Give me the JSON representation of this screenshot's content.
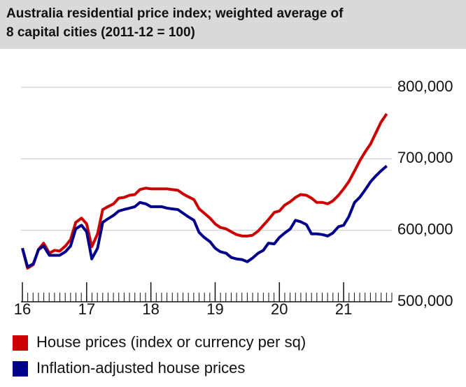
{
  "chart_data": {
    "type": "line",
    "title": "Australia residential price index; weighted average of\n8 capital cities (2011-12 = 100)",
    "x": [
      16,
      16.08,
      16.17,
      16.25,
      16.33,
      16.42,
      16.5,
      16.58,
      16.67,
      16.75,
      16.83,
      16.92,
      17,
      17.08,
      17.17,
      17.25,
      17.33,
      17.42,
      17.5,
      17.58,
      17.67,
      17.75,
      17.83,
      17.92,
      18,
      18.08,
      18.17,
      18.25,
      18.33,
      18.42,
      18.5,
      18.58,
      18.67,
      18.75,
      18.83,
      18.92,
      19,
      19.08,
      19.17,
      19.25,
      19.33,
      19.42,
      19.5,
      19.58,
      19.67,
      19.75,
      19.83,
      19.92,
      20,
      20.08,
      20.17,
      20.25,
      20.33,
      20.42,
      20.5,
      20.58,
      20.67,
      20.75,
      20.83,
      20.92,
      21,
      21.08,
      21.17,
      21.25,
      21.33,
      21.42,
      21.5,
      21.58,
      21.67
    ],
    "series": [
      {
        "name": "House prices (index or currency per sq)",
        "color": "#cc0000",
        "values": [
          575000,
          547000,
          552000,
          573000,
          582000,
          568000,
          572000,
          571000,
          578000,
          587000,
          611000,
          617000,
          609000,
          577000,
          595000,
          629000,
          633000,
          637000,
          645000,
          646000,
          649000,
          650000,
          657000,
          659000,
          658000,
          658000,
          658000,
          658000,
          657000,
          656000,
          651000,
          647000,
          643000,
          630000,
          624000,
          617000,
          609000,
          604000,
          602000,
          598000,
          594000,
          592000,
          592000,
          593000,
          599000,
          607000,
          615000,
          625000,
          627000,
          635000,
          640000,
          646000,
          650000,
          649000,
          645000,
          639000,
          639000,
          637000,
          641000,
          649000,
          658000,
          668000,
          683000,
          697000,
          709000,
          721000,
          736000,
          751000,
          763000
        ]
      },
      {
        "name": "Inflation-adjusted house prices",
        "color": "#00008b",
        "values": [
          575000,
          549000,
          553000,
          573000,
          578000,
          565000,
          565000,
          565000,
          570000,
          578000,
          602000,
          607000,
          598000,
          560000,
          575000,
          611000,
          616000,
          621000,
          627000,
          629000,
          631000,
          633000,
          639000,
          637000,
          633000,
          633000,
          633000,
          631000,
          630000,
          629000,
          624000,
          619000,
          614000,
          597000,
          590000,
          584000,
          575000,
          570000,
          568000,
          562000,
          560000,
          559000,
          556000,
          561000,
          568000,
          572000,
          582000,
          581000,
          590000,
          596000,
          602000,
          614000,
          612000,
          608000,
          595000,
          595000,
          594000,
          592000,
          596000,
          605000,
          607000,
          619000,
          639000,
          646000,
          656000,
          668000,
          676000,
          683000,
          690000
        ]
      }
    ],
    "xlim": [
      16,
      21.75
    ],
    "xticks": [
      16,
      17,
      18,
      19,
      20,
      21
    ],
    "ylim": [
      500000,
      800000
    ],
    "yticks": [
      {
        "value": 500000,
        "label": "500,000"
      },
      {
        "value": 600000,
        "label": "600,000"
      },
      {
        "value": 700000,
        "label": "700,000"
      },
      {
        "value": 800000,
        "label": "800,000"
      }
    ],
    "grid": true
  }
}
